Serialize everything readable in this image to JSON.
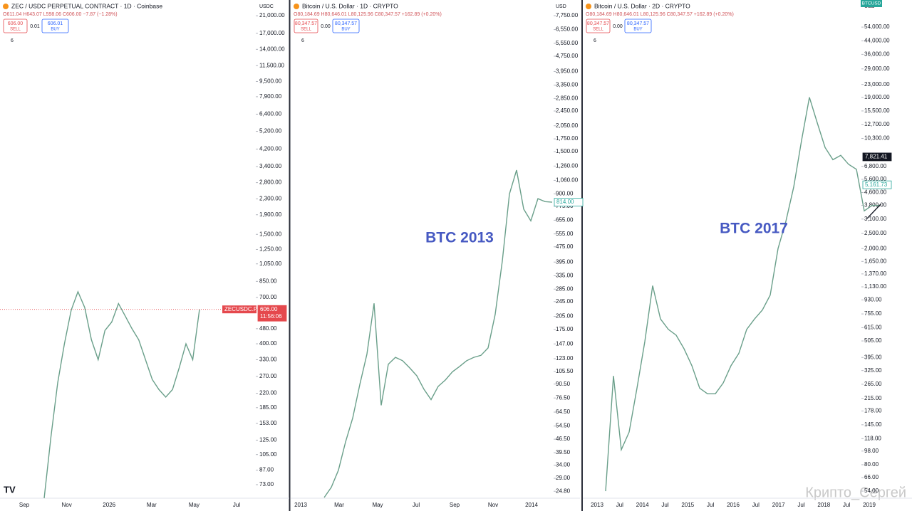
{
  "watermark": "Крипто_Сергей",
  "chart_data": [
    {
      "type": "line",
      "title": "ZEC / USDC PERPETUAL CONTRACT · 1D · Coinbase",
      "ohlc": "O611.04 H643.07 L598.06 C606.00 −7.87 (−1.28%)",
      "sell_price": "606.00",
      "sell_label": "SELL",
      "spread": "0.01",
      "buy_price": "606.01",
      "buy_label": "BUY",
      "indicators": "6",
      "currency": "USDC",
      "log_scale": true,
      "color": "#6a9f8a",
      "x_labels": [
        "Sep",
        "Nov",
        "2026",
        "Mar",
        "May",
        "Jul"
      ],
      "values": [
        62,
        130,
        250,
        400,
        600,
        750,
        620,
        420,
        330,
        470,
        520,
        650,
        560,
        480,
        420,
        330,
        260,
        230,
        210,
        230,
        300,
        400,
        330,
        606
      ],
      "ylim": [
        62,
        25400
      ],
      "yticks": [
        {
          "value": 21000,
          "label": "21,000.00"
        },
        {
          "value": 17000,
          "label": "17,000.00"
        },
        {
          "value": 14000,
          "label": "14,000.00"
        },
        {
          "value": 11500,
          "label": "11,500.00"
        },
        {
          "value": 9500,
          "label": "9,500.00"
        },
        {
          "value": 7900,
          "label": "7,900.00"
        },
        {
          "value": 6400,
          "label": "6,400.00"
        },
        {
          "value": 5200,
          "label": "5,200.00"
        },
        {
          "value": 4200,
          "label": "4,200.00"
        },
        {
          "value": 3400,
          "label": "3,400.00"
        },
        {
          "value": 2800,
          "label": "2,800.00"
        },
        {
          "value": 2300,
          "label": "2,300.00"
        },
        {
          "value": 1900,
          "label": "1,900.00"
        },
        {
          "value": 1500,
          "label": "1,500.00"
        },
        {
          "value": 1250,
          "label": "1,250.00"
        },
        {
          "value": 1050,
          "label": "1,050.00"
        },
        {
          "value": 850,
          "label": "850.00"
        },
        {
          "value": 700,
          "label": "700.00"
        },
        {
          "value": 480,
          "label": "480.00"
        },
        {
          "value": 400,
          "label": "400.00"
        },
        {
          "value": 330,
          "label": "330.00"
        },
        {
          "value": 270,
          "label": "270.00"
        },
        {
          "value": 220,
          "label": "220.00"
        },
        {
          "value": 185,
          "label": "185.00"
        },
        {
          "value": 153,
          "label": "153.00"
        },
        {
          "value": 125,
          "label": "125.00"
        },
        {
          "value": 105,
          "label": "105.00"
        },
        {
          "value": 87,
          "label": "87.00"
        },
        {
          "value": 73,
          "label": "73.00"
        }
      ],
      "price_labels": [
        {
          "value": 606,
          "label": "606.00",
          "color": "#e5484d",
          "filled": true,
          "countdown": "11:56:06",
          "symbol": "ZECUSDC.P"
        }
      ]
    },
    {
      "type": "line",
      "title": "Bitcoin / U.S. Dollar · 1D · CRYPTO",
      "ohlc": "O80,184.69 H80,646.01 L80,125.96 C80,347.57 +162.89 (+0.20%)",
      "sell_price": "80,347.57",
      "sell_label": "SELL",
      "spread": "0.00",
      "buy_price": "80,347.57",
      "buy_label": "BUY",
      "indicators": "6",
      "currency": "USD",
      "log_scale": true,
      "color": "#6a9f8a",
      "annotation": "BTC 2013",
      "x_labels": [
        "2013",
        "Mar",
        "May",
        "Jul",
        "Sep",
        "Nov",
        "2014"
      ],
      "values": [
        23,
        26,
        32,
        45,
        60,
        90,
        130,
        240,
        70,
        115,
        125,
        120,
        110,
        100,
        85,
        75,
        88,
        95,
        105,
        112,
        120,
        125,
        128,
        140,
        210,
        400,
        900,
        1200,
        750,
        650,
        850,
        820,
        814
      ],
      "ylim": [
        22.8,
        9365
      ],
      "yticks": [
        {
          "value": 7750,
          "label": "7,750.00"
        },
        {
          "value": 6550,
          "label": "6,550.00"
        },
        {
          "value": 5550,
          "label": "5,550.00"
        },
        {
          "value": 4750,
          "label": "4,750.00"
        },
        {
          "value": 3950,
          "label": "3,950.00"
        },
        {
          "value": 3350,
          "label": "3,350.00"
        },
        {
          "value": 2850,
          "label": "2,850.00"
        },
        {
          "value": 2450,
          "label": "2,450.00"
        },
        {
          "value": 2050,
          "label": "2,050.00"
        },
        {
          "value": 1750,
          "label": "1,750.00"
        },
        {
          "value": 1500,
          "label": "1,500.00"
        },
        {
          "value": 1260,
          "label": "1,260.00"
        },
        {
          "value": 1060,
          "label": "1,060.00"
        },
        {
          "value": 900,
          "label": "900.00"
        },
        {
          "value": 775,
          "label": "775.00"
        },
        {
          "value": 655,
          "label": "655.00"
        },
        {
          "value": 555,
          "label": "555.00"
        },
        {
          "value": 475,
          "label": "475.00"
        },
        {
          "value": 395,
          "label": "395.00"
        },
        {
          "value": 335,
          "label": "335.00"
        },
        {
          "value": 285,
          "label": "285.00"
        },
        {
          "value": 245,
          "label": "245.00"
        },
        {
          "value": 205,
          "label": "205.00"
        },
        {
          "value": 175,
          "label": "175.00"
        },
        {
          "value": 147,
          "label": "147.00"
        },
        {
          "value": 123,
          "label": "123.00"
        },
        {
          "value": 105.5,
          "label": "105.50"
        },
        {
          "value": 90.5,
          "label": "90.50"
        },
        {
          "value": 76.5,
          "label": "76.50"
        },
        {
          "value": 64.5,
          "label": "64.50"
        },
        {
          "value": 54.5,
          "label": "54.50"
        },
        {
          "value": 46.5,
          "label": "46.50"
        },
        {
          "value": 39.5,
          "label": "39.50"
        },
        {
          "value": 34,
          "label": "34.00"
        },
        {
          "value": 29,
          "label": "29.00"
        },
        {
          "value": 24.8,
          "label": "24.80"
        }
      ],
      "price_labels": [
        {
          "value": 814,
          "label": "814.00",
          "color": "#26a69a",
          "filled": false
        }
      ]
    },
    {
      "type": "line",
      "title": "Bitcoin / U.S. Dollar · 2D · CRYPTO",
      "ohlc": "O80,184.69 H80,646.01 L80,125.96 C80,347.57 +162.89 (+0.20%)",
      "sell_price": "80,347.57",
      "sell_label": "SELL",
      "spread": "0.00",
      "buy_price": "80,347.57",
      "buy_label": "BUY",
      "indicators": "6",
      "currency": "USD",
      "symbol_tag": "BTCUSD",
      "log_scale": true,
      "color": "#6a9f8a",
      "annotation": "BTC 2017",
      "x_labels": [
        "2013",
        "Jul",
        "2014",
        "Jul",
        "2015",
        "Jul",
        "2016",
        "Jul",
        "2017",
        "Jul",
        "2018",
        "Jul",
        "2019"
      ],
      "values": [
        54,
        300,
        100,
        130,
        250,
        500,
        1150,
        700,
        600,
        550,
        450,
        350,
        250,
        230,
        230,
        270,
        350,
        420,
        600,
        700,
        800,
        1000,
        2000,
        3000,
        5000,
        10000,
        19000,
        13000,
        9000,
        7500,
        8000,
        7000,
        6500,
        3500,
        3800,
        3800
      ],
      "ylim": [
        48.6,
        80850
      ],
      "yticks": [
        {
          "value": 54000,
          "label": "54,000.00"
        },
        {
          "value": 44000,
          "label": "44,000.00"
        },
        {
          "value": 36000,
          "label": "36,000.00"
        },
        {
          "value": 29000,
          "label": "29,000.00"
        },
        {
          "value": 23000,
          "label": "23,000.00"
        },
        {
          "value": 19000,
          "label": "19,000.00"
        },
        {
          "value": 15500,
          "label": "15,500.00"
        },
        {
          "value": 12700,
          "label": "12,700.00"
        },
        {
          "value": 10300,
          "label": "10,300.00"
        },
        {
          "value": 6800,
          "label": "6,800.00"
        },
        {
          "value": 5600,
          "label": "5,600.00"
        },
        {
          "value": 4600,
          "label": "4,600.00"
        },
        {
          "value": 3800,
          "label": "3,800.00"
        },
        {
          "value": 3100,
          "label": "3,100.00"
        },
        {
          "value": 2500,
          "label": "2,500.00"
        },
        {
          "value": 2000,
          "label": "2,000.00"
        },
        {
          "value": 1650,
          "label": "1,650.00"
        },
        {
          "value": 1370,
          "label": "1,370.00"
        },
        {
          "value": 1130,
          "label": "1,130.00"
        },
        {
          "value": 930,
          "label": "930.00"
        },
        {
          "value": 755,
          "label": "755.00"
        },
        {
          "value": 615,
          "label": "615.00"
        },
        {
          "value": 505,
          "label": "505.00"
        },
        {
          "value": 395,
          "label": "395.00"
        },
        {
          "value": 325,
          "label": "325.00"
        },
        {
          "value": 265,
          "label": "265.00"
        },
        {
          "value": 215,
          "label": "215.00"
        },
        {
          "value": 178,
          "label": "178.00"
        },
        {
          "value": 145,
          "label": "145.00"
        },
        {
          "value": 118,
          "label": "118.00"
        },
        {
          "value": 98,
          "label": "98.00"
        },
        {
          "value": 80,
          "label": "80.00"
        },
        {
          "value": 66,
          "label": "66.00"
        },
        {
          "value": 54,
          "label": "54.00"
        }
      ],
      "price_labels": [
        {
          "value": 7821.41,
          "label": "7,821.41",
          "color": "#131722",
          "filled": true
        },
        {
          "value": 5161.73,
          "label": "5,161.73",
          "color": "#26a69a",
          "filled": false
        }
      ]
    }
  ]
}
